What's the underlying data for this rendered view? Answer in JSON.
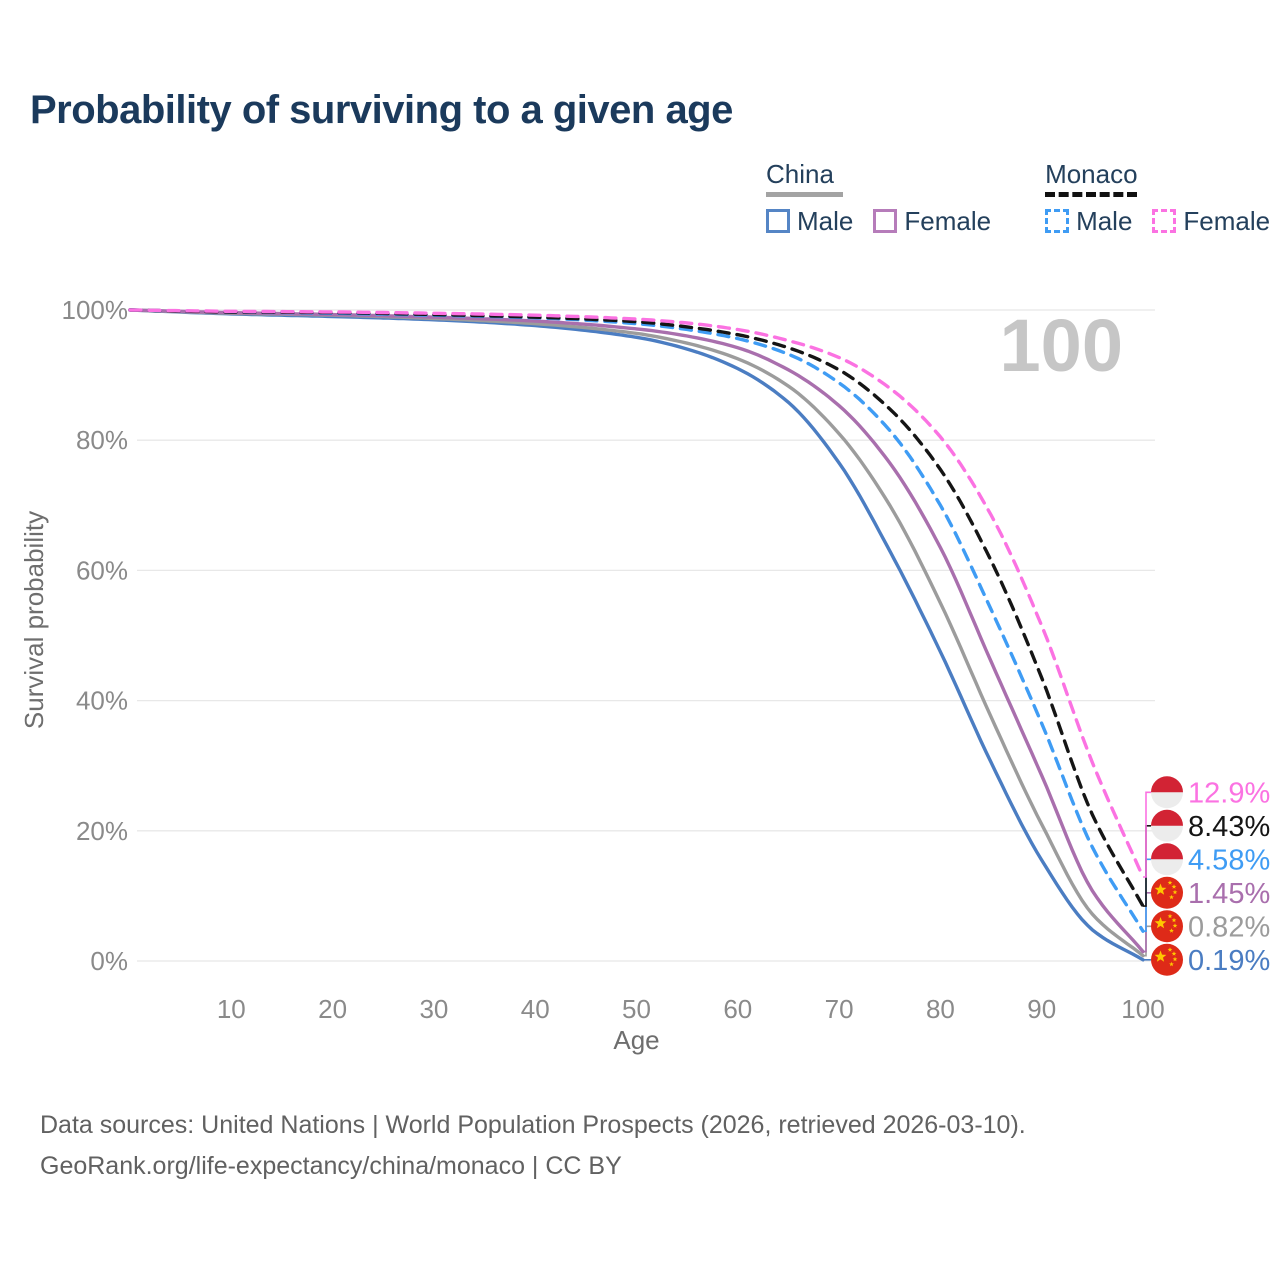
{
  "title": "Probability of surviving to a given age",
  "watermark": "100",
  "legend": {
    "groups": [
      {
        "label": "China",
        "line_style": "solid",
        "line_color": "#a3a3a3",
        "items": [
          {
            "label": "Male",
            "color": "#5585c5",
            "dashed": false
          },
          {
            "label": "Female",
            "color": "#b67cba",
            "dashed": false
          }
        ]
      },
      {
        "label": "Monaco",
        "line_style": "dashed",
        "line_color": "#111111",
        "items": [
          {
            "label": "Male",
            "color": "#3f9cf4",
            "dashed": true
          },
          {
            "label": "Female",
            "color": "#fb72e2",
            "dashed": true
          }
        ]
      }
    ]
  },
  "chart_data": {
    "type": "line",
    "title": "Probability of surviving to a given age",
    "xlabel": "Age",
    "ylabel": "Survival probability",
    "xlim": [
      0,
      100
    ],
    "ylim": [
      0,
      100
    ],
    "grid": "horizontal",
    "x_ticks": [
      10,
      20,
      30,
      40,
      50,
      60,
      70,
      80,
      90,
      100
    ],
    "y_ticks": [
      {
        "value": 0,
        "label": "0%"
      },
      {
        "value": 20,
        "label": "20%"
      },
      {
        "value": 40,
        "label": "40%"
      },
      {
        "value": 60,
        "label": "60%"
      },
      {
        "value": 80,
        "label": "80%"
      },
      {
        "value": 100,
        "label": "100%"
      }
    ],
    "x": [
      0,
      10,
      20,
      30,
      40,
      50,
      55,
      60,
      65,
      70,
      75,
      80,
      85,
      90,
      95,
      100
    ],
    "series": [
      {
        "name": "China Male",
        "country": "China",
        "sex": "Male",
        "color": "#4b7dc2",
        "dashed": false,
        "flag": "china",
        "end_label": "0.19%",
        "end_value": 0.19,
        "values": [
          100,
          99.4,
          99.0,
          98.5,
          97.6,
          95.8,
          94.0,
          91.0,
          85.8,
          76.5,
          63.0,
          47.5,
          30.5,
          15.5,
          4.8,
          0.19
        ]
      },
      {
        "name": "China",
        "country": "China",
        "sex": "Both",
        "color": "#9c9c9c",
        "dashed": false,
        "flag": "china",
        "end_label": "0.82%",
        "end_value": 0.82,
        "values": [
          100,
          99.5,
          99.2,
          98.7,
          97.9,
          96.4,
          94.9,
          92.5,
          88.3,
          81.0,
          70.0,
          55.0,
          37.5,
          21.0,
          7.2,
          0.82
        ]
      },
      {
        "name": "China Female",
        "country": "China",
        "sex": "Female",
        "color": "#a96fad",
        "dashed": false,
        "flag": "china",
        "end_label": "1.45%",
        "end_value": 1.45,
        "values": [
          100,
          99.6,
          99.3,
          98.9,
          98.3,
          97.1,
          96.0,
          94.2,
          90.8,
          85.3,
          76.5,
          63.5,
          46.0,
          28.5,
          10.8,
          1.45
        ]
      },
      {
        "name": "Monaco Male",
        "country": "Monaco",
        "sex": "Male",
        "color": "#3f9cf4",
        "dashed": true,
        "flag": "monaco",
        "end_label": "4.58%",
        "end_value": 4.58,
        "values": [
          100,
          99.7,
          99.5,
          99.2,
          98.8,
          97.9,
          97.0,
          95.6,
          93.2,
          88.8,
          81.5,
          70.0,
          54.0,
          36.5,
          17.5,
          4.58
        ]
      },
      {
        "name": "Monaco",
        "country": "Monaco",
        "sex": "Both",
        "color": "#151515",
        "dashed": true,
        "flag": "monaco",
        "end_label": "8.43%",
        "end_value": 8.43,
        "values": [
          100,
          99.7,
          99.6,
          99.3,
          98.9,
          98.2,
          97.4,
          96.2,
          94.2,
          90.8,
          84.8,
          75.5,
          61.5,
          43.5,
          22.5,
          8.43
        ]
      },
      {
        "name": "Monaco Female",
        "country": "Monaco",
        "sex": "Female",
        "color": "#fb72e2",
        "dashed": true,
        "flag": "monaco",
        "end_label": "12.9%",
        "end_value": 12.9,
        "values": [
          100,
          99.8,
          99.7,
          99.5,
          99.2,
          98.6,
          98.0,
          97.0,
          95.3,
          92.7,
          88.0,
          80.5,
          68.5,
          51.5,
          30.5,
          12.9
        ]
      }
    ]
  },
  "footer": {
    "line1": "Data sources: United Nations | World Population Prospects (2026, retrieved 2026-03-10).",
    "line2": "GeoRank.org/life-expectancy/china/monaco | CC BY"
  },
  "colors": {
    "title": "#1b3a5c",
    "axis_text": "#8a8a8a",
    "axis_title": "#6e6e6e",
    "gridline": "#e8e8e8",
    "watermark": "#c6c6c6",
    "footer": "#616161",
    "china_flag_red": "#de2a18",
    "china_flag_star": "#fec800",
    "monaco_flag_red": "#d22334",
    "monaco_flag_white": "#ececec"
  }
}
